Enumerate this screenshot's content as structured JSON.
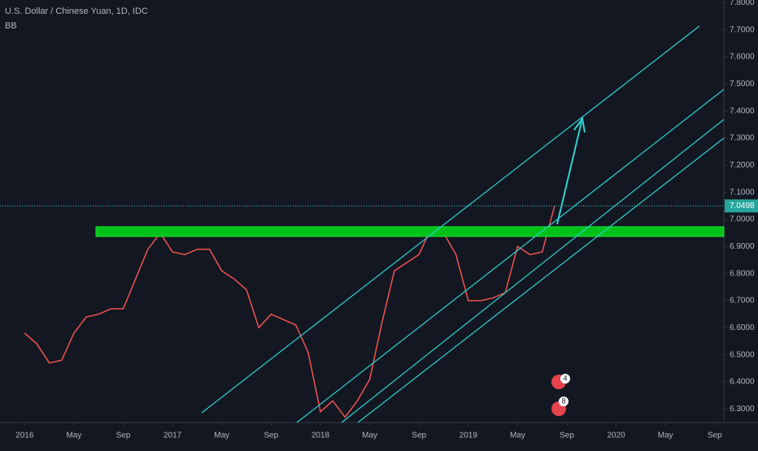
{
  "chart_data": {
    "type": "line",
    "title": "U.S. Dollar / Chinese Yuan, 1D, IDC",
    "indicator": "BB",
    "x": [
      "2016-01",
      "2016-02",
      "2016-03",
      "2016-04",
      "2016-05",
      "2016-06",
      "2016-07",
      "2016-08",
      "2016-09",
      "2016-10",
      "2016-11",
      "2016-12",
      "2017-01",
      "2017-02",
      "2017-03",
      "2017-04",
      "2017-05",
      "2017-06",
      "2017-07",
      "2017-08",
      "2017-09",
      "2017-10",
      "2017-11",
      "2017-12",
      "2018-01",
      "2018-02",
      "2018-03",
      "2018-04",
      "2018-05",
      "2018-06",
      "2018-07",
      "2018-08",
      "2018-09",
      "2018-10",
      "2018-11",
      "2018-12",
      "2019-01",
      "2019-02",
      "2019-03",
      "2019-04",
      "2019-05",
      "2019-06",
      "2019-07",
      "2019-08"
    ],
    "series": [
      {
        "name": "USDCNY",
        "color": "#ef5350",
        "values": [
          6.58,
          6.54,
          6.47,
          6.48,
          6.58,
          6.64,
          6.65,
          6.67,
          6.67,
          6.78,
          6.89,
          6.95,
          6.88,
          6.87,
          6.89,
          6.89,
          6.81,
          6.78,
          6.74,
          6.6,
          6.65,
          6.63,
          6.61,
          6.51,
          6.29,
          6.33,
          6.27,
          6.33,
          6.41,
          6.62,
          6.81,
          6.84,
          6.87,
          6.97,
          6.95,
          6.87,
          6.7,
          6.7,
          6.71,
          6.73,
          6.9,
          6.87,
          6.88,
          7.05
        ]
      }
    ],
    "last_price": 7.0498,
    "events": [
      "4",
      "8"
    ],
    "xlim": [
      "2015-11",
      "2020-10"
    ],
    "xticks": [
      {
        "value": "2016-01",
        "label": "2016"
      },
      {
        "value": "2016-05",
        "label": "May"
      },
      {
        "value": "2016-09",
        "label": "Sep"
      },
      {
        "value": "2017-01",
        "label": "2017"
      },
      {
        "value": "2017-05",
        "label": "May"
      },
      {
        "value": "2017-09",
        "label": "Sep"
      },
      {
        "value": "2018-01",
        "label": "2018"
      },
      {
        "value": "2018-05",
        "label": "May"
      },
      {
        "value": "2018-09",
        "label": "Sep"
      },
      {
        "value": "2019-01",
        "label": "2019"
      },
      {
        "value": "2019-05",
        "label": "May"
      },
      {
        "value": "2019-09",
        "label": "Sep"
      },
      {
        "value": "2020-01",
        "label": "2020"
      },
      {
        "value": "2020-05",
        "label": "May"
      },
      {
        "value": "2020-09",
        "label": "Sep"
      }
    ],
    "ylim": [
      6.25,
      7.81
    ],
    "yticks": [
      {
        "value": 6.3,
        "label": "6.3000"
      },
      {
        "value": 6.4,
        "label": "6.4000"
      },
      {
        "value": 6.5,
        "label": "6.5000"
      },
      {
        "value": 6.6,
        "label": "6.6000"
      },
      {
        "value": 6.7,
        "label": "6.7000"
      },
      {
        "value": 6.8,
        "label": "6.8000"
      },
      {
        "value": 6.9,
        "label": "6.9000"
      },
      {
        "value": 7.0,
        "label": "7.0000"
      },
      {
        "value": 7.1,
        "label": "7.1000"
      },
      {
        "value": 7.2,
        "label": "7.2000"
      },
      {
        "value": 7.3,
        "label": "7.3000"
      },
      {
        "value": 7.4,
        "label": "7.4000"
      },
      {
        "value": 7.5,
        "label": "7.5000"
      },
      {
        "value": 7.6,
        "label": "7.6000"
      },
      {
        "value": 7.7,
        "label": "7.7000"
      },
      {
        "value": 7.8,
        "label": "7.8000"
      }
    ]
  }
}
